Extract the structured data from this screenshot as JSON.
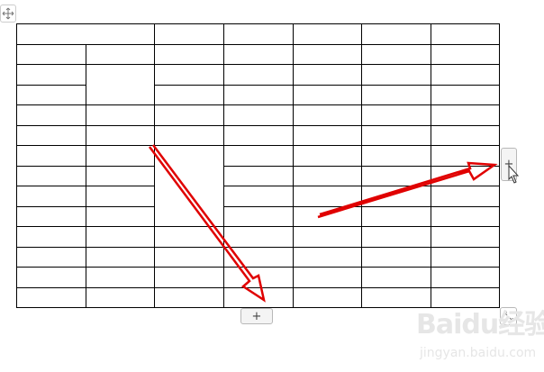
{
  "table": {
    "rows": 14,
    "columns": 7,
    "merged_cells": [
      {
        "row": 0,
        "col": 0,
        "rowspan": 1,
        "colspan": 2
      },
      {
        "row": 2,
        "col": 1,
        "rowspan": 2,
        "colspan": 1
      },
      {
        "row": 6,
        "col": 2,
        "rowspan": 4,
        "colspan": 1
      }
    ]
  },
  "controls": {
    "move_icon": "move-arrows-icon",
    "add_column_label": "+",
    "add_row_label": "+",
    "resize_icon": "diagonal-resize-icon"
  },
  "annotation_color": "#e00000",
  "watermark": {
    "logo": "Bai du 经验",
    "url": "jingyan.baidu.com"
  }
}
